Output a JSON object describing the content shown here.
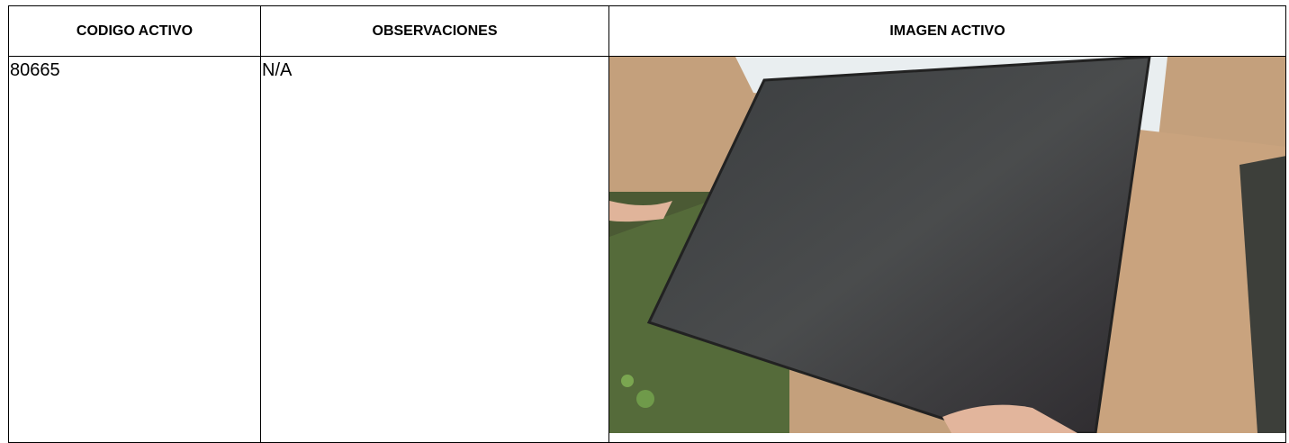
{
  "table": {
    "headers": [
      "CODIGO ACTIVO",
      "OBSERVACIONES",
      "IMAGEN ACTIVO"
    ],
    "rows": [
      [
        "80665",
        "N/A"
      ]
    ]
  }
}
